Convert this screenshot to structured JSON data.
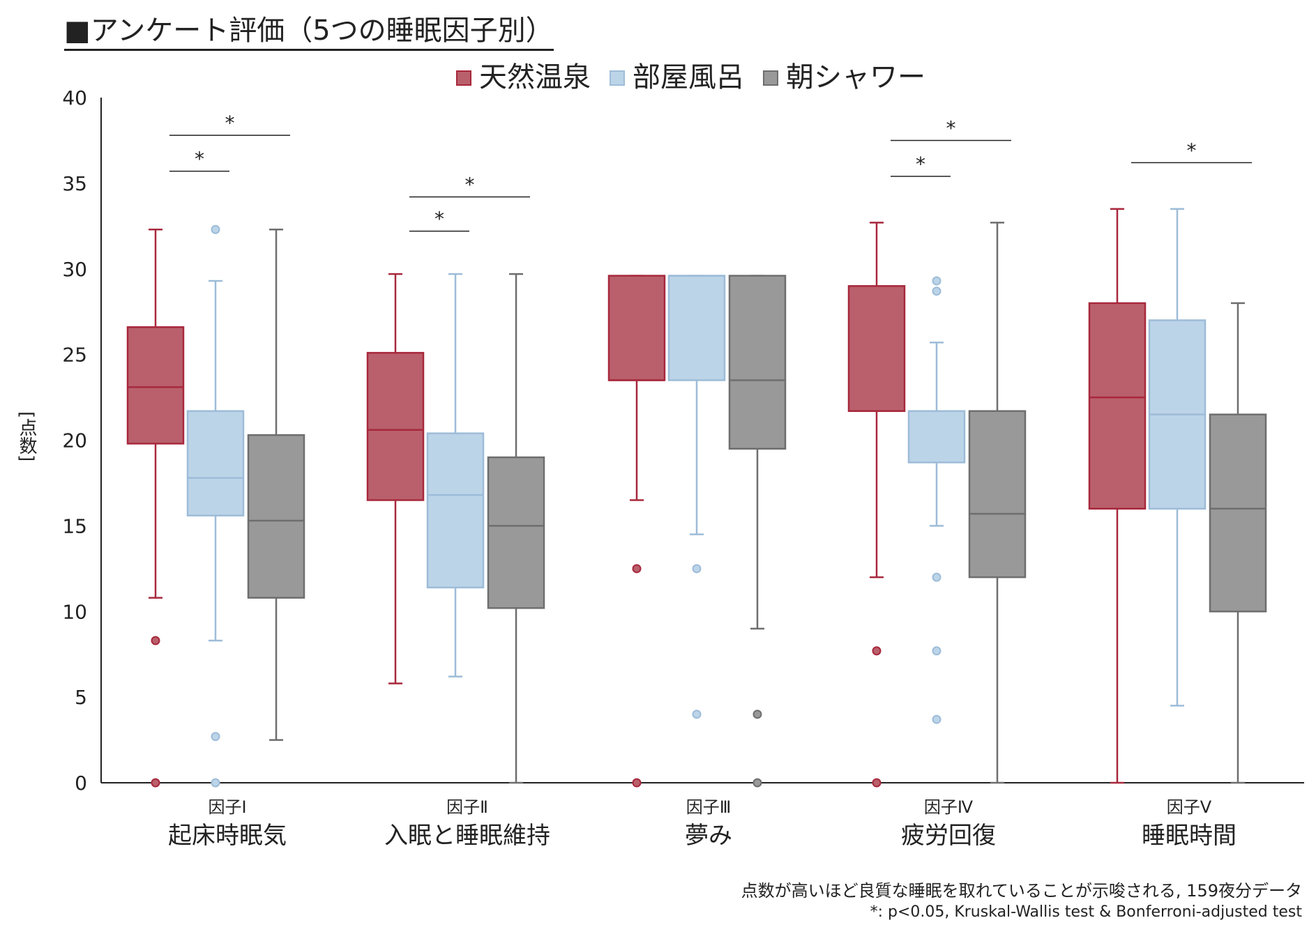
{
  "title": "■アンケート評価（5つの睡眠因子別）",
  "chart_data": {
    "type": "boxplot",
    "ylabel": "[点数]",
    "ylim": [
      0,
      40
    ],
    "yticks": [
      0,
      5,
      10,
      15,
      20,
      25,
      30,
      35,
      40
    ],
    "legend": [
      {
        "name": "天然温泉",
        "color": "#b9606c",
        "edge": "#a8283c"
      },
      {
        "name": "部屋風呂",
        "color": "#bcd4e8",
        "edge": "#9dbcd8"
      },
      {
        "name": "朝シャワー",
        "color": "#999999",
        "edge": "#6e6e6e"
      }
    ],
    "categories": [
      {
        "factor": "因子Ⅰ",
        "label": "起床時眠気"
      },
      {
        "factor": "因子Ⅱ",
        "label": "入眠と睡眠維持"
      },
      {
        "factor": "因子Ⅲ",
        "label": "夢み"
      },
      {
        "factor": "因子Ⅳ",
        "label": "疲労回復"
      },
      {
        "factor": "因子Ⅴ",
        "label": "睡眠時間"
      }
    ],
    "series": [
      {
        "name": "天然温泉",
        "boxes": [
          {
            "min": 10.8,
            "q1": 19.8,
            "median": 23.1,
            "q3": 26.6,
            "max": 32.3,
            "outliers": [
              8.3,
              0
            ]
          },
          {
            "min": 5.8,
            "q1": 16.5,
            "median": 20.6,
            "q3": 25.1,
            "max": 29.7,
            "outliers": []
          },
          {
            "min": 16.5,
            "q1": 23.5,
            "median": 23.5,
            "q3": 29.6,
            "max": 29.6,
            "outliers": [
              12.5,
              0
            ]
          },
          {
            "min": 12.0,
            "q1": 21.7,
            "median": 21.7,
            "q3": 29.0,
            "max": 32.7,
            "outliers": [
              7.7,
              0
            ]
          },
          {
            "min": 0,
            "q1": 16.0,
            "median": 22.5,
            "q3": 28.0,
            "max": 33.5,
            "outliers": []
          }
        ]
      },
      {
        "name": "部屋風呂",
        "boxes": [
          {
            "min": 8.3,
            "q1": 15.6,
            "median": 17.8,
            "q3": 21.7,
            "max": 29.3,
            "outliers": [
              32.3,
              2.7,
              0
            ]
          },
          {
            "min": 6.2,
            "q1": 11.4,
            "median": 16.8,
            "q3": 20.4,
            "max": 29.7,
            "outliers": []
          },
          {
            "min": 14.5,
            "q1": 23.5,
            "median": 29.6,
            "q3": 29.6,
            "max": 29.6,
            "outliers": [
              12.5,
              4.0
            ]
          },
          {
            "min": 15.0,
            "q1": 18.7,
            "median": 21.7,
            "q3": 21.7,
            "max": 25.7,
            "outliers": [
              29.3,
              28.7,
              12.0,
              7.7,
              3.7
            ]
          },
          {
            "min": 4.5,
            "q1": 16.0,
            "median": 21.5,
            "q3": 27.0,
            "max": 33.5,
            "outliers": []
          }
        ]
      },
      {
        "name": "朝シャワー",
        "boxes": [
          {
            "min": 2.5,
            "q1": 10.8,
            "median": 15.3,
            "q3": 20.3,
            "max": 32.3,
            "outliers": []
          },
          {
            "min": 0,
            "q1": 10.2,
            "median": 15.0,
            "q3": 19.0,
            "max": 29.7,
            "outliers": []
          },
          {
            "min": 9.0,
            "q1": 19.5,
            "median": 23.5,
            "q3": 29.6,
            "max": 29.6,
            "outliers": [
              4.0,
              0
            ]
          },
          {
            "min": 0,
            "q1": 12.0,
            "median": 15.7,
            "q3": 21.7,
            "max": 32.7,
            "outliers": []
          },
          {
            "min": 0,
            "q1": 10.0,
            "median": 16.0,
            "q3": 21.5,
            "max": 28.0,
            "outliers": []
          }
        ]
      }
    ],
    "significance": [
      {
        "category": 0,
        "from": 0,
        "to": 1,
        "y": 35.7,
        "label": "*"
      },
      {
        "category": 0,
        "from": 0,
        "to": 2,
        "y": 37.8,
        "label": "*"
      },
      {
        "category": 1,
        "from": 0,
        "to": 1,
        "y": 32.2,
        "label": "*"
      },
      {
        "category": 1,
        "from": 0,
        "to": 2,
        "y": 34.2,
        "label": "*"
      },
      {
        "category": 3,
        "from": 0,
        "to": 1,
        "y": 35.4,
        "label": "*"
      },
      {
        "category": 3,
        "from": 0,
        "to": 2,
        "y": 37.5,
        "label": "*"
      },
      {
        "category": 4,
        "from": 0,
        "to": 2,
        "y": 36.2,
        "label": "*"
      }
    ]
  },
  "notes": [
    "点数が高いほど良質な睡眠を取れていることが示唆される, 159夜分データ",
    "*: p<0.05, Kruskal-Wallis test & Bonferroni-adjusted test"
  ]
}
